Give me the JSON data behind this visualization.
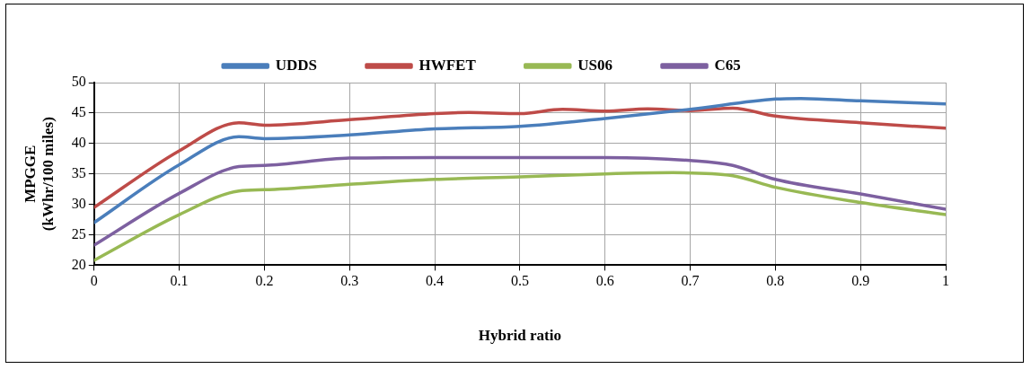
{
  "chart_data": {
    "type": "line",
    "xlabel": "Hybrid ratio",
    "ylabel": "MPGGE\n(kWhr/100 miles)",
    "xlim": [
      0,
      1
    ],
    "xticks": [
      0,
      0.1,
      0.2,
      0.3,
      0.4,
      0.5,
      0.6,
      0.7,
      0.8,
      0.9,
      1
    ],
    "ylim": [
      20,
      50
    ],
    "yticks": [
      20,
      25,
      30,
      35,
      40,
      45,
      50
    ],
    "grid": true,
    "legend": "top",
    "marker": "none",
    "line_style": "solid",
    "series": [
      {
        "name": "UDDS",
        "color": "#4a7ebb",
        "x": [
          0,
          0.1,
          0.17,
          0.2,
          0.3,
          0.4,
          0.5,
          0.6,
          0.7,
          0.8,
          0.83,
          0.9,
          1
        ],
        "values": [
          27,
          36.5,
          41.1,
          40.8,
          41.4,
          42.4,
          42.8,
          44.1,
          45.6,
          47.3,
          47.4,
          47,
          46.5
        ]
      },
      {
        "name": "HWFET",
        "color": "#be4b48",
        "x": [
          0,
          0.1,
          0.17,
          0.2,
          0.3,
          0.4,
          0.44,
          0.5,
          0.55,
          0.6,
          0.65,
          0.7,
          0.75,
          0.8,
          0.9,
          1
        ],
        "values": [
          29.5,
          38.8,
          43.4,
          43.0,
          43.9,
          44.9,
          45.1,
          44.9,
          45.6,
          45.3,
          45.7,
          45.4,
          45.8,
          44.5,
          43.4,
          42.5
        ]
      },
      {
        "name": "US06",
        "color": "#98b954",
        "x": [
          0,
          0.1,
          0.17,
          0.2,
          0.3,
          0.4,
          0.5,
          0.6,
          0.68,
          0.75,
          0.8,
          0.9,
          1
        ],
        "values": [
          20.8,
          28.3,
          32.2,
          32.4,
          33.3,
          34.1,
          34.5,
          35,
          35.2,
          34.7,
          32.8,
          30.3,
          28.3
        ]
      },
      {
        "name": "C65",
        "color": "#7d60a0",
        "x": [
          0,
          0.1,
          0.17,
          0.2,
          0.3,
          0.4,
          0.5,
          0.6,
          0.7,
          0.75,
          0.8,
          0.9,
          1
        ],
        "values": [
          23.3,
          31.8,
          36.2,
          36.4,
          37.6,
          37.7,
          37.7,
          37.7,
          37.2,
          36.4,
          34.1,
          31.7,
          29.2
        ]
      }
    ]
  }
}
